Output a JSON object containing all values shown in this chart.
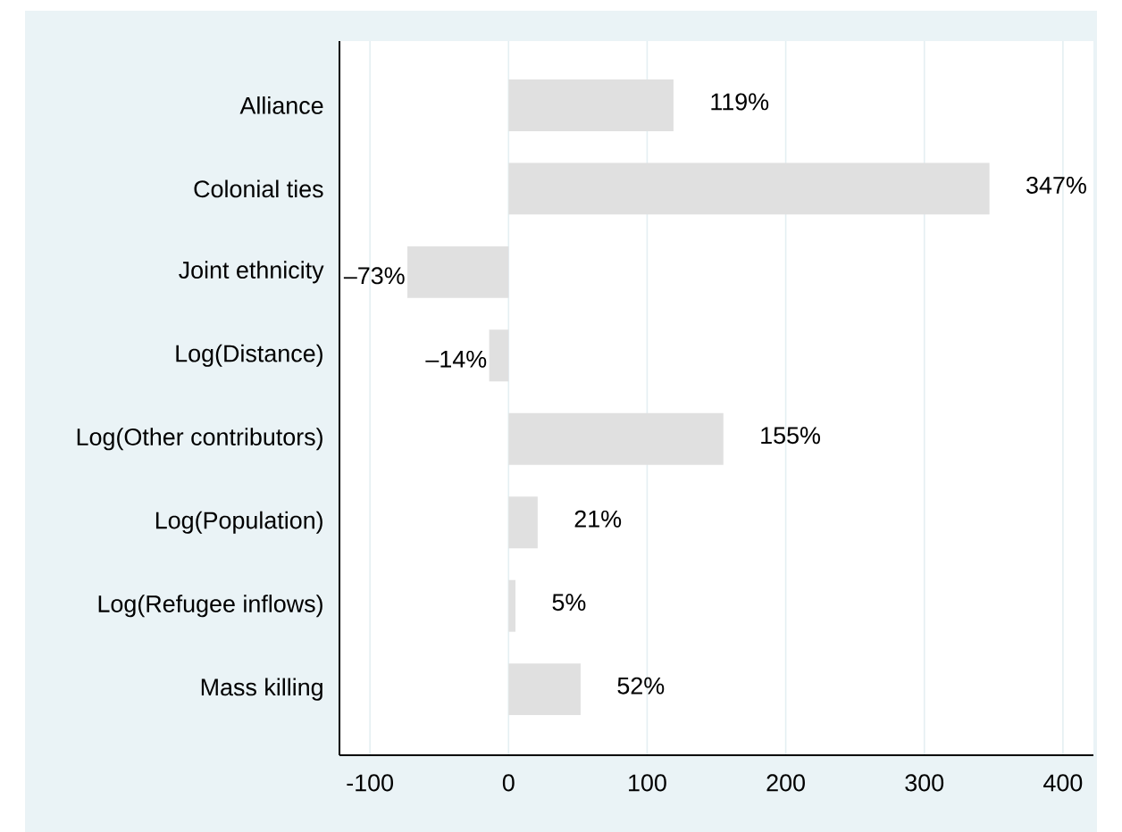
{
  "chart_data": {
    "type": "bar",
    "orientation": "horizontal",
    "categories": [
      "Alliance",
      "Colonial ties",
      "Joint ethnicity",
      "Log(Distance)",
      "Log(Other contributors)",
      "Log(Population)",
      "Log(Refugee inflows)",
      "Mass killing"
    ],
    "values": [
      119,
      347,
      -73,
      -14,
      155,
      21,
      5,
      52
    ],
    "value_labels": [
      "119%",
      "347%",
      "–73%",
      "–14%",
      "155%",
      "21%",
      "5%",
      "52%"
    ],
    "color": "#e0e0e0",
    "xlim": [
      -122,
      422
    ],
    "xticks": [
      -100,
      0,
      100,
      200,
      300,
      400
    ],
    "grid": "x"
  }
}
